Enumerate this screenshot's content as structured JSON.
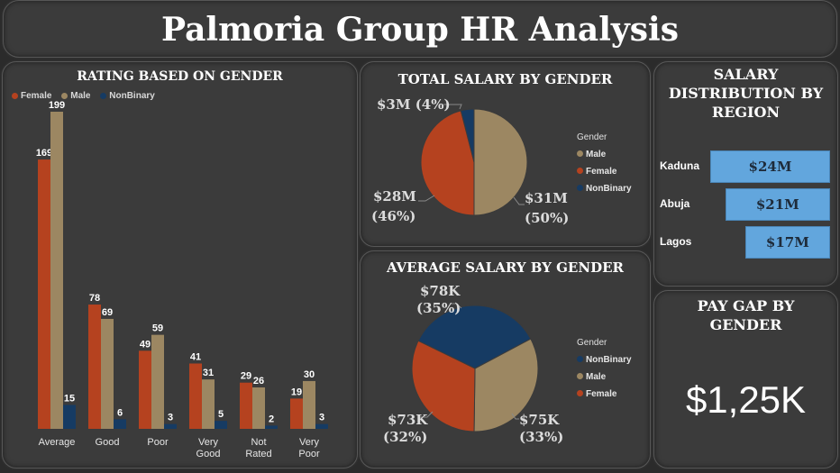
{
  "dashboard": {
    "title": "Palmoria Group HR Analysis"
  },
  "colors": {
    "female": "#b5421f",
    "male": "#9c8762",
    "nonbinary": "#163b63",
    "region_bar": "#62a6dd"
  },
  "rating_chart": {
    "title": "RATING BASED ON GENDER",
    "legend": [
      "Female",
      "Male",
      "NonBinary"
    ]
  },
  "total_salary": {
    "title": "TOTAL SALARY BY GENDER",
    "legend_title": "Gender",
    "legend": [
      "Male",
      "Female",
      "NonBinary"
    ],
    "labels": {
      "nonbinary": "$3M (4%)",
      "female_value": "$28M",
      "female_pct": "(46%)",
      "male_value": "$31M",
      "male_pct": "(50%)"
    }
  },
  "avg_salary": {
    "title": "AVERAGE SALARY BY GENDER",
    "legend_title": "Gender",
    "legend": [
      "NonBinary",
      "Male",
      "Female"
    ],
    "labels": {
      "nonbinary_value": "$78K",
      "nonbinary_pct": "(35%)",
      "female_value": "$73K",
      "female_pct": "(32%)",
      "male_value": "$75K",
      "male_pct": "(33%)"
    }
  },
  "region": {
    "title_line1": "SALARY",
    "title_line2": "DISTRIBUTION BY",
    "title_line3": "REGION",
    "rows": [
      {
        "name": "Kaduna",
        "value": "$24M"
      },
      {
        "name": "Abuja",
        "value": "$21M"
      },
      {
        "name": "Lagos",
        "value": "$17M"
      }
    ]
  },
  "pay_gap": {
    "title_line1": "PAY GAP BY",
    "title_line2": "GENDER",
    "value": "$1,25K"
  },
  "chart_data": [
    {
      "type": "bar",
      "title": "RATING BASED ON GENDER",
      "categories": [
        "Average",
        "Good",
        "Poor",
        "Very Good",
        "Not Rated",
        "Very Poor"
      ],
      "series": [
        {
          "name": "Female",
          "values": [
            169,
            78,
            49,
            41,
            29,
            19
          ]
        },
        {
          "name": "Male",
          "values": [
            199,
            69,
            59,
            31,
            26,
            30
          ]
        },
        {
          "name": "NonBinary",
          "values": [
            15,
            6,
            3,
            5,
            2,
            3
          ]
        }
      ],
      "legend": "top-left"
    },
    {
      "type": "pie",
      "title": "TOTAL SALARY BY GENDER",
      "categories": [
        "Male",
        "Female",
        "NonBinary"
      ],
      "values": [
        31,
        28,
        3
      ],
      "percent": [
        50,
        46,
        4
      ],
      "unit": "$M"
    },
    {
      "type": "pie",
      "title": "AVERAGE SALARY BY GENDER",
      "categories": [
        "NonBinary",
        "Male",
        "Female"
      ],
      "values": [
        78,
        75,
        73
      ],
      "percent": [
        35,
        33,
        32
      ],
      "unit": "$K"
    },
    {
      "type": "bar",
      "orientation": "horizontal",
      "title": "SALARY DISTRIBUTION BY REGION",
      "categories": [
        "Kaduna",
        "Abuja",
        "Lagos"
      ],
      "values": [
        24,
        21,
        17
      ],
      "unit": "$M"
    }
  ]
}
